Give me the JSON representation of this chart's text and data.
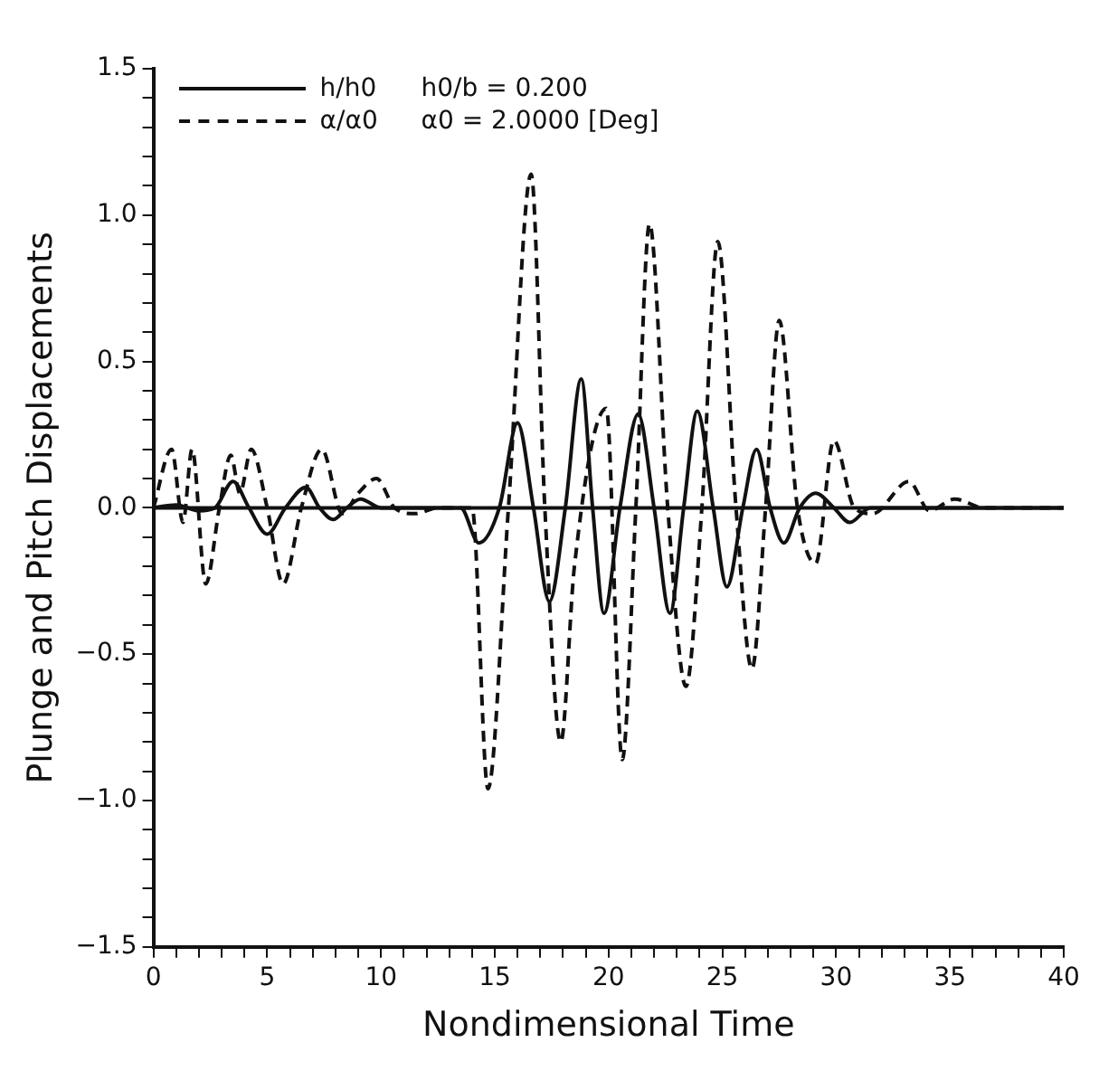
{
  "chart_data": {
    "type": "line",
    "xlabel": "Nondimensional Time",
    "ylabel": "Plunge and Pitch Displacements",
    "annotations": [
      "h0/b = 0.200",
      "α0 = 2.0000 [Deg]"
    ],
    "xlim": [
      0,
      40
    ],
    "xticks": [
      0,
      {
        "value": 1,
        "label": null
      },
      {
        "value": 2,
        "label": null
      },
      {
        "value": 3,
        "label": null
      },
      {
        "value": 4,
        "label": null
      },
      5,
      {
        "value": 6,
        "label": null
      },
      {
        "value": 7,
        "label": null
      },
      {
        "value": 8,
        "label": null
      },
      {
        "value": 9,
        "label": null
      },
      10,
      {
        "value": 11,
        "label": null
      },
      {
        "value": 12,
        "label": null
      },
      {
        "value": 13,
        "label": null
      },
      {
        "value": 14,
        "label": null
      },
      15,
      {
        "value": 16,
        "label": null
      },
      {
        "value": 17,
        "label": null
      },
      {
        "value": 18,
        "label": null
      },
      {
        "value": 19,
        "label": null
      },
      20,
      {
        "value": 21,
        "label": null
      },
      {
        "value": 22,
        "label": null
      },
      {
        "value": 23,
        "label": null
      },
      {
        "value": 24,
        "label": null
      },
      25,
      {
        "value": 26,
        "label": null
      },
      {
        "value": 27,
        "label": null
      },
      {
        "value": 28,
        "label": null
      },
      {
        "value": 29,
        "label": null
      },
      30,
      {
        "value": 31,
        "label": null
      },
      {
        "value": 32,
        "label": null
      },
      {
        "value": 33,
        "label": null
      },
      {
        "value": 34,
        "label": null
      },
      35,
      {
        "value": 36,
        "label": null
      },
      {
        "value": 37,
        "label": null
      },
      {
        "value": 38,
        "label": null
      },
      {
        "value": 39,
        "label": null
      },
      40
    ],
    "ylim": [
      -1.5,
      1.5
    ],
    "yticks": [
      {
        "value": -1.5,
        "label": "−1.5"
      },
      {
        "value": -1.4,
        "label": null
      },
      {
        "value": -1.3,
        "label": null
      },
      {
        "value": -1.2,
        "label": null
      },
      {
        "value": -1.1,
        "label": null
      },
      {
        "value": -1.0,
        "label": "−1.0"
      },
      {
        "value": -0.9,
        "label": null
      },
      {
        "value": -0.8,
        "label": null
      },
      {
        "value": -0.7,
        "label": null
      },
      {
        "value": -0.6,
        "label": null
      },
      {
        "value": -0.5,
        "label": "−0.5"
      },
      {
        "value": -0.4,
        "label": null
      },
      {
        "value": -0.3,
        "label": null
      },
      {
        "value": -0.2,
        "label": null
      },
      {
        "value": -0.1,
        "label": null
      },
      {
        "value": 0,
        "label": "0.0"
      },
      {
        "value": 0.1,
        "label": null
      },
      {
        "value": 0.2,
        "label": null
      },
      {
        "value": 0.3,
        "label": null
      },
      {
        "value": 0.4,
        "label": null
      },
      {
        "value": 0.5,
        "label": "0.5"
      },
      {
        "value": 0.6,
        "label": null
      },
      {
        "value": 0.7,
        "label": null
      },
      {
        "value": 0.8,
        "label": null
      },
      {
        "value": 0.9,
        "label": null
      },
      {
        "value": 1.0,
        "label": "1.0"
      },
      {
        "value": 1.1,
        "label": null
      },
      {
        "value": 1.2,
        "label": null
      },
      {
        "value": 1.3,
        "label": null
      },
      {
        "value": 1.4,
        "label": null
      },
      {
        "value": 1.5,
        "label": "1.5"
      }
    ],
    "ref_lines": [
      {
        "axis": "y",
        "value": 0,
        "label": null,
        "color": "#111111",
        "line_style": "solid"
      }
    ],
    "legend": "top left",
    "grid": false,
    "marker": "none",
    "series": [
      {
        "name": "h/h0",
        "color": "#111111",
        "line_style": "solid",
        "x": [
          0,
          1,
          2,
          2.7,
          3.5,
          4.2,
          5.0,
          5.8,
          6.7,
          7.3,
          7.9,
          8.5,
          9.1,
          10,
          12,
          13.5,
          14.3,
          15.2,
          16.0,
          16.7,
          17.4,
          18.1,
          18.8,
          19.3,
          19.8,
          20.5,
          21.3,
          22.0,
          22.7,
          23.3,
          23.9,
          24.6,
          25.2,
          25.9,
          26.5,
          27.1,
          27.7,
          28.4,
          29.1,
          29.9,
          30.6,
          31.5,
          33,
          36,
          40
        ],
        "values": [
          0,
          0.01,
          -0.01,
          0,
          0.09,
          0,
          -0.09,
          0,
          0.07,
          0,
          -0.04,
          0,
          0.03,
          0,
          0,
          0,
          -0.12,
          0,
          0.29,
          0,
          -0.32,
          0,
          0.44,
          0,
          -0.36,
          0,
          0.32,
          0,
          -0.36,
          0,
          0.33,
          0,
          -0.27,
          0,
          0.2,
          0,
          -0.12,
          0,
          0.05,
          0,
          -0.05,
          0,
          0,
          0,
          0
        ]
      },
      {
        "name": "α/α0",
        "color": "#111111",
        "line_style": "dashed",
        "x": [
          0,
          0.8,
          1.3,
          1.7,
          2.3,
          2.9,
          3.4,
          3.8,
          4.3,
          5.0,
          5.7,
          6.5,
          7.4,
          8.3,
          9.0,
          9.8,
          10.6,
          11.5,
          12.5,
          14.0,
          14.7,
          15.6,
          16.6,
          17.2,
          17.9,
          18.5,
          19.9,
          20.6,
          21.2,
          21.8,
          22.6,
          23.4,
          24.1,
          24.8,
          25.6,
          26.3,
          26.9,
          27.5,
          28.3,
          29.1,
          29.9,
          30.8,
          31.6,
          33.2,
          34.1,
          35.2,
          36.5,
          38,
          40
        ],
        "values": [
          0,
          0.2,
          -0.05,
          0.2,
          -0.26,
          0,
          0.18,
          0.05,
          0.2,
          0,
          -0.26,
          0,
          0.2,
          -0.02,
          0.05,
          0.1,
          0,
          -0.02,
          0,
          0,
          -0.96,
          0,
          1.14,
          0,
          -0.8,
          -0.2,
          0.34,
          -0.86,
          0,
          0.97,
          0,
          -0.61,
          0,
          0.91,
          0,
          -0.55,
          0,
          0.64,
          0,
          -0.19,
          0.23,
          0,
          -0.02,
          0.09,
          -0.01,
          0.03,
          0,
          0,
          0
        ]
      }
    ]
  }
}
